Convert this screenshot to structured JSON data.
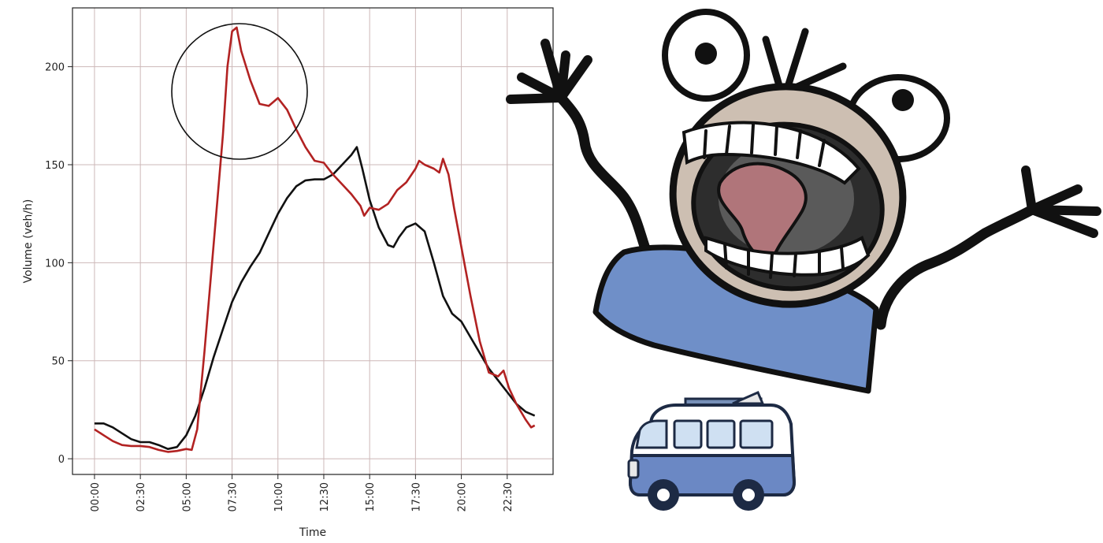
{
  "chart_data": {
    "type": "line",
    "xlabel": "Time",
    "ylabel": "Volume (veh/h)",
    "x_ticks": [
      "00:00",
      "02:30",
      "05:00",
      "07:30",
      "10:00",
      "12:30",
      "15:00",
      "17:30",
      "20:00",
      "22:30"
    ],
    "x_tick_hours": [
      0,
      2.5,
      5,
      7.5,
      10,
      12.5,
      15,
      17.5,
      20,
      22.5
    ],
    "y_ticks": [
      0,
      50,
      100,
      150,
      200
    ],
    "xlim": [
      -1.2,
      25
    ],
    "ylim": [
      -8,
      230
    ],
    "grid": true,
    "x_unit": "hours since 00:00",
    "series": [
      {
        "color": "#111111",
        "points": [
          [
            0,
            18
          ],
          [
            0.5,
            18
          ],
          [
            1,
            16
          ],
          [
            1.5,
            13
          ],
          [
            2,
            10
          ],
          [
            2.5,
            8.5
          ],
          [
            3,
            8.5
          ],
          [
            3.5,
            7
          ],
          [
            4,
            5
          ],
          [
            4.5,
            6
          ],
          [
            5,
            12
          ],
          [
            5.5,
            22
          ],
          [
            6,
            36
          ],
          [
            6.5,
            52
          ],
          [
            7,
            66
          ],
          [
            7.5,
            80
          ],
          [
            8,
            90
          ],
          [
            8.5,
            98
          ],
          [
            9,
            105
          ],
          [
            9.5,
            115
          ],
          [
            10,
            125
          ],
          [
            10.5,
            133
          ],
          [
            11,
            139
          ],
          [
            11.5,
            142
          ],
          [
            12,
            142.5
          ],
          [
            12.5,
            142.5
          ],
          [
            13,
            145
          ],
          [
            13.5,
            150
          ],
          [
            14,
            155
          ],
          [
            14.3,
            159
          ],
          [
            14.6,
            148
          ],
          [
            15,
            132
          ],
          [
            15.5,
            118
          ],
          [
            16,
            109
          ],
          [
            16.3,
            108
          ],
          [
            16.6,
            113
          ],
          [
            17,
            118
          ],
          [
            17.5,
            120
          ],
          [
            18,
            116
          ],
          [
            18.5,
            100
          ],
          [
            19,
            83
          ],
          [
            19.5,
            74
          ],
          [
            20,
            70
          ],
          [
            20.5,
            62
          ],
          [
            21,
            54
          ],
          [
            21.5,
            46
          ],
          [
            22,
            40
          ],
          [
            22.5,
            34
          ],
          [
            23,
            28
          ],
          [
            23.5,
            24
          ],
          [
            24,
            22
          ]
        ]
      },
      {
        "color": "#b22222",
        "points": [
          [
            0,
            15
          ],
          [
            0.5,
            12
          ],
          [
            1,
            9
          ],
          [
            1.5,
            7
          ],
          [
            2,
            6.5
          ],
          [
            2.5,
            6.5
          ],
          [
            3,
            6
          ],
          [
            3.5,
            4.5
          ],
          [
            4,
            3.5
          ],
          [
            4.5,
            4
          ],
          [
            5,
            5
          ],
          [
            5.3,
            4.5
          ],
          [
            5.6,
            15
          ],
          [
            6,
            55
          ],
          [
            6.5,
            110
          ],
          [
            7,
            165
          ],
          [
            7.25,
            200
          ],
          [
            7.5,
            218
          ],
          [
            7.75,
            220
          ],
          [
            8,
            208
          ],
          [
            8.5,
            193
          ],
          [
            9,
            181
          ],
          [
            9.5,
            180
          ],
          [
            10,
            184
          ],
          [
            10.5,
            178
          ],
          [
            11,
            168
          ],
          [
            11.5,
            159
          ],
          [
            12,
            152
          ],
          [
            12.5,
            151
          ],
          [
            13,
            145
          ],
          [
            13.5,
            140
          ],
          [
            14,
            135
          ],
          [
            14.5,
            129
          ],
          [
            14.7,
            124
          ],
          [
            15,
            128
          ],
          [
            15.5,
            127
          ],
          [
            16,
            130
          ],
          [
            16.5,
            137
          ],
          [
            17,
            141
          ],
          [
            17.5,
            148
          ],
          [
            17.7,
            152
          ],
          [
            18,
            150
          ],
          [
            18.5,
            148
          ],
          [
            18.8,
            146
          ],
          [
            19,
            153
          ],
          [
            19.3,
            145
          ],
          [
            19.6,
            128
          ],
          [
            20,
            108
          ],
          [
            20.5,
            83
          ],
          [
            21,
            60
          ],
          [
            21.5,
            44
          ],
          [
            22,
            42
          ],
          [
            22.3,
            45
          ],
          [
            22.6,
            36
          ],
          [
            23,
            28
          ],
          [
            23.5,
            20
          ],
          [
            23.8,
            16
          ],
          [
            24,
            17
          ]
        ]
      }
    ]
  },
  "illustrations": {
    "annotation": "circle highlighting the morning peak",
    "cartoon": "screaming-cartoon-character",
    "vehicle": "camper-van"
  }
}
